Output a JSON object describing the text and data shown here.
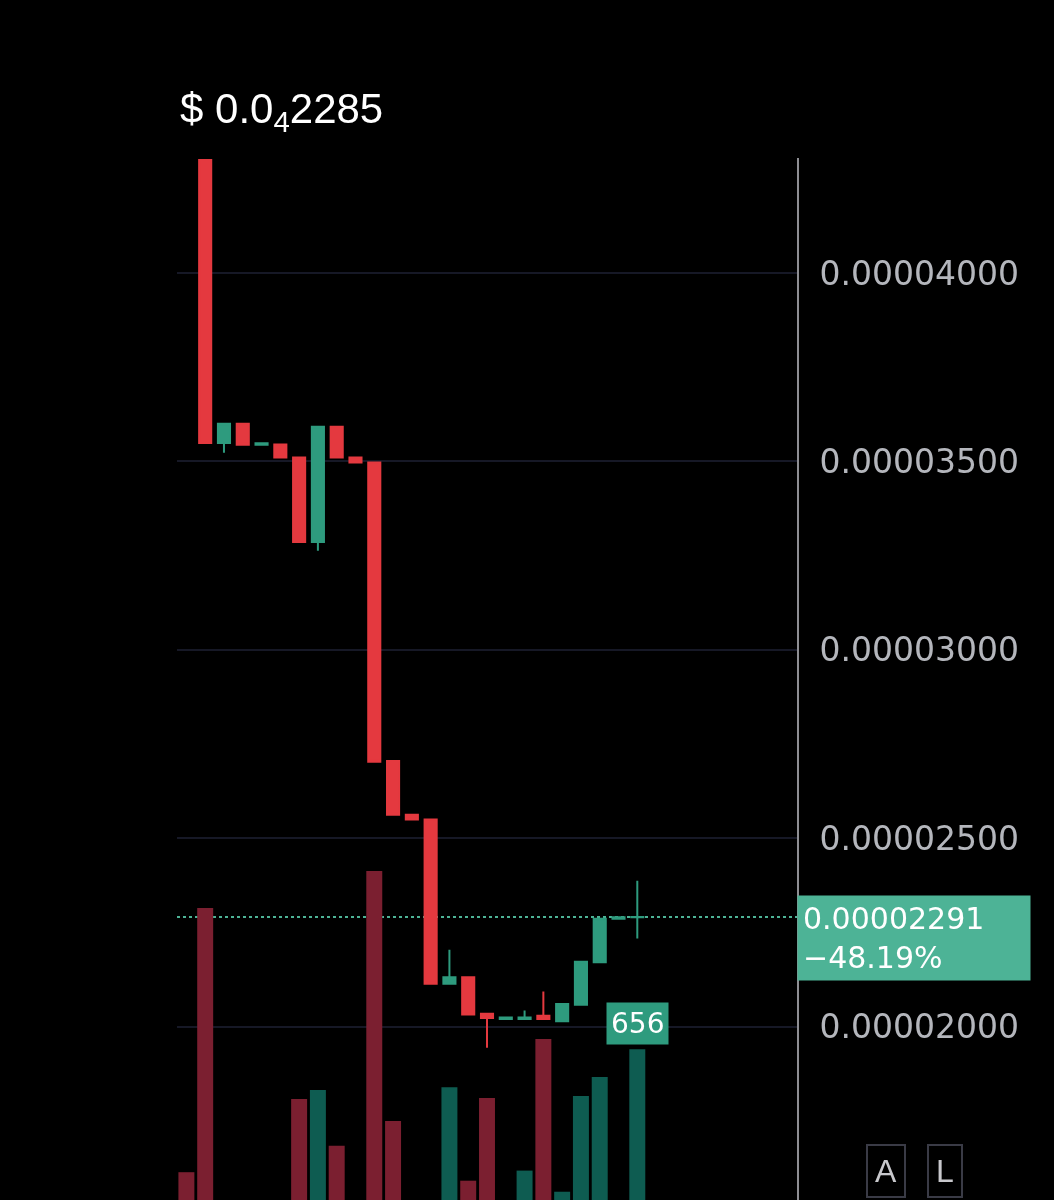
{
  "chart_data": {
    "type": "candlestick",
    "title": "$ 0.0$_{4}$2285",
    "categories": [
      null,
      null,
      null,
      null,
      null,
      null,
      null,
      null,
      null,
      null,
      null,
      null,
      null,
      null,
      null,
      null,
      null,
      null,
      null,
      null,
      null,
      null,
      null,
      null,
      null,
      null,
      null,
      null,
      null,
      null,
      null,
      null,
      null
    ],
    "ohlc": [
      null,
      [
        4.3e-05,
        4.3e-05,
        3.549e-05,
        3.549e-05
      ],
      [
        3.549e-05,
        3.6e-05,
        3.523e-05,
        3.6e-05
      ],
      [
        3.6e-05,
        3.6e-05,
        3.544e-05,
        3.544e-05
      ],
      [
        3.544e-05,
        3.548e-05,
        3.544e-05,
        3.548e-05
      ],
      [
        3.545e-05,
        3.545e-05,
        3.51e-05,
        3.51e-05
      ],
      [
        3.51e-05,
        3.51e-05,
        3.286e-05,
        3.286e-05
      ],
      [
        3.286e-05,
        3.592e-05,
        3.263e-05,
        3.592e-05
      ],
      [
        3.592e-05,
        3.592e-05,
        3.51e-05,
        3.51e-05
      ],
      [
        3.51e-05,
        3.51e-05,
        3.497e-05,
        3.497e-05
      ],
      [
        3.497e-05,
        3.497e-05,
        2.703e-05,
        2.703e-05
      ],
      [
        2.705e-05,
        2.705e-05,
        2.562e-05,
        2.562e-05
      ],
      [
        2.562e-05,
        2.562e-05,
        2.55e-05,
        2.55e-05
      ],
      [
        2.55e-05,
        2.55e-05,
        2.114e-05,
        2.114e-05
      ],
      [
        2.114e-05,
        2.204e-05,
        2.114e-05,
        2.131e-05
      ],
      [
        2.131e-05,
        2.131e-05,
        2.032e-05,
        2.032e-05
      ],
      [
        2.034e-05,
        2.034e-05,
        1.944e-05,
        2.023e-05
      ],
      [
        2.02e-05,
        2.024e-05,
        2.02e-05,
        2.024e-05
      ],
      [
        2.02e-05,
        2.043e-05,
        2.02e-05,
        2.024e-05
      ],
      [
        2.029e-05,
        2.093e-05,
        2.02e-05,
        2.02e-05
      ],
      [
        2.014e-05,
        2.06e-05,
        2.014e-05,
        2.06e-05
      ],
      [
        2.058e-05,
        2.172e-05,
        2.058e-05,
        2.172e-05
      ],
      [
        2.171e-05,
        2.286e-05,
        2.171e-05,
        2.286e-05
      ],
      [
        2.286e-05,
        2.29e-05,
        2.286e-05,
        2.29e-05
      ],
      [
        2.29e-05,
        2.387e-05,
        2.234e-05,
        2.291e-05
      ],
      null,
      null,
      null,
      null,
      null,
      null,
      null,
      null
    ],
    "colors": [
      null,
      "#e4393f",
      "#2e9b7e",
      "#e4393f",
      "#2e9b7e",
      "#e4393f",
      "#e4393f",
      "#2e9b7e",
      "#e4393f",
      "#e4393f",
      "#e4393f",
      "#e4393f",
      "#e4393f",
      "#e4393f",
      "#2e9b7e",
      "#e4393f",
      "#e4393f",
      "#2e9b7e",
      "#2e9b7e",
      "#e4393f",
      "#2e9b7e",
      "#2e9b7e",
      "#2e9b7e",
      "#2e9b7e",
      "#2e9b7e",
      null,
      null,
      null,
      null,
      null,
      null,
      null,
      null
    ],
    "series": [
      {
        "type": "bar",
        "axis": "y2",
        "values": [
          121,
          1271,
          null,
          null,
          null,
          null,
          440,
          479,
          236,
          null,
          1432,
          344,
          null,
          null,
          491,
          84,
          444,
          null,
          128,
          701,
          36,
          453,
          535,
          null,
          656,
          null,
          null,
          null,
          null,
          null,
          null,
          null,
          null
        ],
        "colors": [
          "#7b1f30",
          "#7b1f30",
          "#0e5c51",
          "#7b1f30",
          "#0e5c51",
          "#7b1f30",
          "#7b1f30",
          "#0e5c51",
          "#7b1f30",
          "#7b1f30",
          "#7b1f30",
          "#7b1f30",
          "#7b1f30",
          "#7b1f30",
          "#0e5c51",
          "#7b1f30",
          "#7b1f30",
          "#0e5c51",
          "#0e5c51",
          "#7b1f30",
          "#0e5c51",
          "#0e5c51",
          "#0e5c51",
          "#0e5c51",
          "#0e5c51",
          null,
          null,
          null,
          null,
          null,
          null,
          null,
          null
        ],
        "value_labels": [
          null,
          null,
          null,
          null,
          null,
          null,
          null,
          null,
          null,
          null,
          null,
          null,
          null,
          null,
          null,
          null,
          null,
          null,
          null,
          null,
          null,
          null,
          null,
          null,
          "656",
          null,
          null,
          null,
          null,
          null,
          null,
          null,
          null
        ]
      }
    ],
    "ylim": [
      1.54e-05,
      4.305e-05
    ],
    "yticks": [
      {
        "value": 2e-05,
        "label": "0.00002000"
      },
      {
        "value": 2.5e-05,
        "label": "0.00002500"
      },
      {
        "value": 3e-05,
        "label": "0.00003000"
      },
      {
        "value": 3.5e-05,
        "label": "0.00003500"
      },
      {
        "value": 4e-05,
        "label": "0.00004000"
      }
    ],
    "y2lim": [
      0,
      4536
    ],
    "ref_lines": [
      {
        "axis": "y",
        "value": 2.291e-05,
        "label": "0.00002291\n−48.19%",
        "color": "#4db396",
        "line_style": "dotted"
      }
    ],
    "grid": "y",
    "tick_labels": "y",
    "annotations": [
      "A",
      "L"
    ]
  }
}
